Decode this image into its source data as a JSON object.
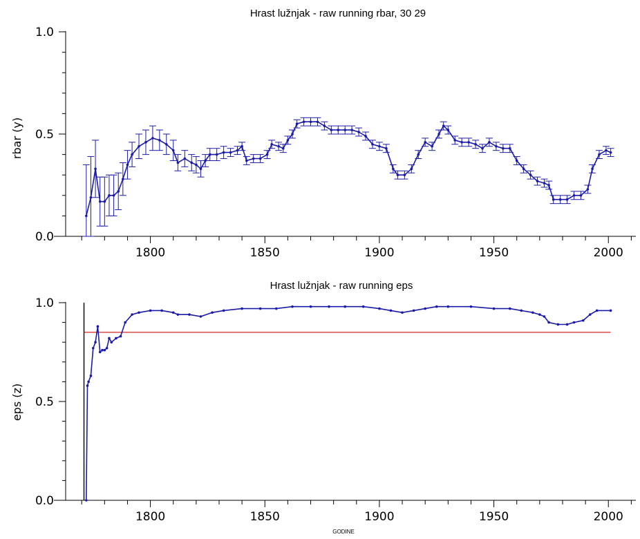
{
  "chart_data": [
    {
      "type": "line",
      "title": "Hrast lužnjak - raw running rbar,    30   29",
      "xlabel": "",
      "ylabel": "rbar  (y)",
      "xlim": [
        1763,
        2012
      ],
      "ylim": [
        0,
        1
      ],
      "x_ticks": [
        "1800",
        "1850",
        "1900",
        "1950",
        "2000"
      ],
      "y_ticks": [
        "0.0",
        "0.5",
        "1.0"
      ],
      "colors": {
        "series": "#1a1aa8"
      },
      "error_bars": true,
      "series": [
        {
          "name": "",
          "points": [
            [
              1772,
              0.1
            ],
            [
              1774,
              0.19
            ],
            [
              1776,
              0.33
            ],
            [
              1778,
              0.17
            ],
            [
              1780,
              0.17
            ],
            [
              1782,
              0.2
            ],
            [
              1784,
              0.2
            ],
            [
              1786,
              0.22
            ],
            [
              1788,
              0.28
            ],
            [
              1790,
              0.35
            ],
            [
              1792,
              0.4
            ],
            [
              1795,
              0.44
            ],
            [
              1798,
              0.46
            ],
            [
              1801,
              0.48
            ],
            [
              1804,
              0.47
            ],
            [
              1807,
              0.45
            ],
            [
              1810,
              0.42
            ],
            [
              1812,
              0.36
            ],
            [
              1815,
              0.38
            ],
            [
              1818,
              0.36
            ],
            [
              1820,
              0.35
            ],
            [
              1822,
              0.33
            ],
            [
              1824,
              0.37
            ],
            [
              1826,
              0.4
            ],
            [
              1829,
              0.4
            ],
            [
              1832,
              0.41
            ],
            [
              1835,
              0.41
            ],
            [
              1838,
              0.42
            ],
            [
              1840,
              0.44
            ],
            [
              1842,
              0.37
            ],
            [
              1845,
              0.38
            ],
            [
              1848,
              0.38
            ],
            [
              1851,
              0.4
            ],
            [
              1853,
              0.45
            ],
            [
              1856,
              0.44
            ],
            [
              1858,
              0.43
            ],
            [
              1860,
              0.47
            ],
            [
              1862,
              0.5
            ],
            [
              1864,
              0.55
            ],
            [
              1867,
              0.56
            ],
            [
              1870,
              0.56
            ],
            [
              1873,
              0.56
            ],
            [
              1876,
              0.54
            ],
            [
              1879,
              0.52
            ],
            [
              1882,
              0.52
            ],
            [
              1885,
              0.52
            ],
            [
              1888,
              0.52
            ],
            [
              1891,
              0.51
            ],
            [
              1894,
              0.49
            ],
            [
              1897,
              0.45
            ],
            [
              1900,
              0.44
            ],
            [
              1903,
              0.43
            ],
            [
              1906,
              0.33
            ],
            [
              1908,
              0.3
            ],
            [
              1911,
              0.3
            ],
            [
              1914,
              0.33
            ],
            [
              1917,
              0.4
            ],
            [
              1920,
              0.46
            ],
            [
              1923,
              0.44
            ],
            [
              1926,
              0.5
            ],
            [
              1928,
              0.54
            ],
            [
              1930,
              0.52
            ],
            [
              1933,
              0.47
            ],
            [
              1936,
              0.46
            ],
            [
              1939,
              0.46
            ],
            [
              1942,
              0.45
            ],
            [
              1945,
              0.43
            ],
            [
              1948,
              0.46
            ],
            [
              1951,
              0.44
            ],
            [
              1954,
              0.43
            ],
            [
              1957,
              0.43
            ],
            [
              1960,
              0.37
            ],
            [
              1963,
              0.33
            ],
            [
              1966,
              0.3
            ],
            [
              1969,
              0.27
            ],
            [
              1972,
              0.26
            ],
            [
              1974,
              0.25
            ],
            [
              1976,
              0.18
            ],
            [
              1979,
              0.18
            ],
            [
              1982,
              0.18
            ],
            [
              1985,
              0.2
            ],
            [
              1988,
              0.2
            ],
            [
              1991,
              0.23
            ],
            [
              1993,
              0.33
            ],
            [
              1996,
              0.4
            ],
            [
              1999,
              0.42
            ],
            [
              2001,
              0.41
            ]
          ],
          "errors": [
            0.25,
            0.2,
            0.14,
            0.12,
            0.12,
            0.1,
            0.1,
            0.09,
            0.08,
            0.07,
            0.06,
            0.06,
            0.06,
            0.06,
            0.05,
            0.05,
            0.05,
            0.04,
            0.04,
            0.04,
            0.04,
            0.04,
            0.03,
            0.03,
            0.03,
            0.03,
            0.02,
            0.02,
            0.02,
            0.02,
            0.02,
            0.02,
            0.02,
            0.02,
            0.02,
            0.02,
            0.02,
            0.02,
            0.02,
            0.02,
            0.02,
            0.02,
            0.02,
            0.02,
            0.02,
            0.02,
            0.02,
            0.02,
            0.02,
            0.02,
            0.02,
            0.02,
            0.02,
            0.02,
            0.02,
            0.02,
            0.02,
            0.02,
            0.02,
            0.02,
            0.02,
            0.02,
            0.02,
            0.02,
            0.02,
            0.02,
            0.02,
            0.02,
            0.02,
            0.02,
            0.02,
            0.02,
            0.02,
            0.02,
            0.02,
            0.02,
            0.02,
            0.02,
            0.02,
            0.02,
            0.02,
            0.02,
            0.02,
            0.02,
            0.02,
            0.02,
            0.02
          ]
        }
      ]
    },
    {
      "type": "line",
      "title": "Hrast lužnjak - raw running eps",
      "xlabel": "GODINE",
      "ylabel": "eps  (z)",
      "xlim": [
        1763,
        2012
      ],
      "ylim": [
        0,
        1
      ],
      "x_ticks": [
        "1800",
        "1850",
        "1900",
        "1950",
        "2000"
      ],
      "y_ticks": [
        "0.0",
        "0.5",
        "1.0"
      ],
      "colors": {
        "series": "#1a1aa8",
        "threshold": "#d42020",
        "vertical_line": "#000000"
      },
      "threshold": 0.85,
      "vertical_line_x": 1771,
      "series": [
        {
          "name": "",
          "points": [
            [
              1772,
              0.0
            ],
            [
              1772.5,
              0.58
            ],
            [
              1773,
              0.6
            ],
            [
              1774,
              0.63
            ],
            [
              1775,
              0.77
            ],
            [
              1776,
              0.8
            ],
            [
              1777,
              0.88
            ],
            [
              1778,
              0.75
            ],
            [
              1779,
              0.76
            ],
            [
              1780,
              0.76
            ],
            [
              1781,
              0.77
            ],
            [
              1782,
              0.82
            ],
            [
              1783,
              0.8
            ],
            [
              1785,
              0.82
            ],
            [
              1787,
              0.83
            ],
            [
              1789,
              0.9
            ],
            [
              1792,
              0.94
            ],
            [
              1795,
              0.95
            ],
            [
              1800,
              0.96
            ],
            [
              1805,
              0.96
            ],
            [
              1810,
              0.95
            ],
            [
              1812,
              0.94
            ],
            [
              1817,
              0.94
            ],
            [
              1822,
              0.93
            ],
            [
              1827,
              0.95
            ],
            [
              1832,
              0.96
            ],
            [
              1840,
              0.97
            ],
            [
              1848,
              0.97
            ],
            [
              1855,
              0.97
            ],
            [
              1862,
              0.98
            ],
            [
              1870,
              0.98
            ],
            [
              1878,
              0.98
            ],
            [
              1885,
              0.98
            ],
            [
              1893,
              0.98
            ],
            [
              1900,
              0.97
            ],
            [
              1905,
              0.96
            ],
            [
              1910,
              0.95
            ],
            [
              1915,
              0.96
            ],
            [
              1920,
              0.97
            ],
            [
              1925,
              0.98
            ],
            [
              1930,
              0.98
            ],
            [
              1940,
              0.98
            ],
            [
              1950,
              0.97
            ],
            [
              1957,
              0.97
            ],
            [
              1962,
              0.96
            ],
            [
              1967,
              0.95
            ],
            [
              1970,
              0.94
            ],
            [
              1972,
              0.93
            ],
            [
              1974,
              0.9
            ],
            [
              1978,
              0.89
            ],
            [
              1982,
              0.89
            ],
            [
              1985,
              0.9
            ],
            [
              1989,
              0.91
            ],
            [
              1992,
              0.94
            ],
            [
              1995,
              0.96
            ],
            [
              2001,
              0.96
            ]
          ]
        }
      ]
    }
  ]
}
